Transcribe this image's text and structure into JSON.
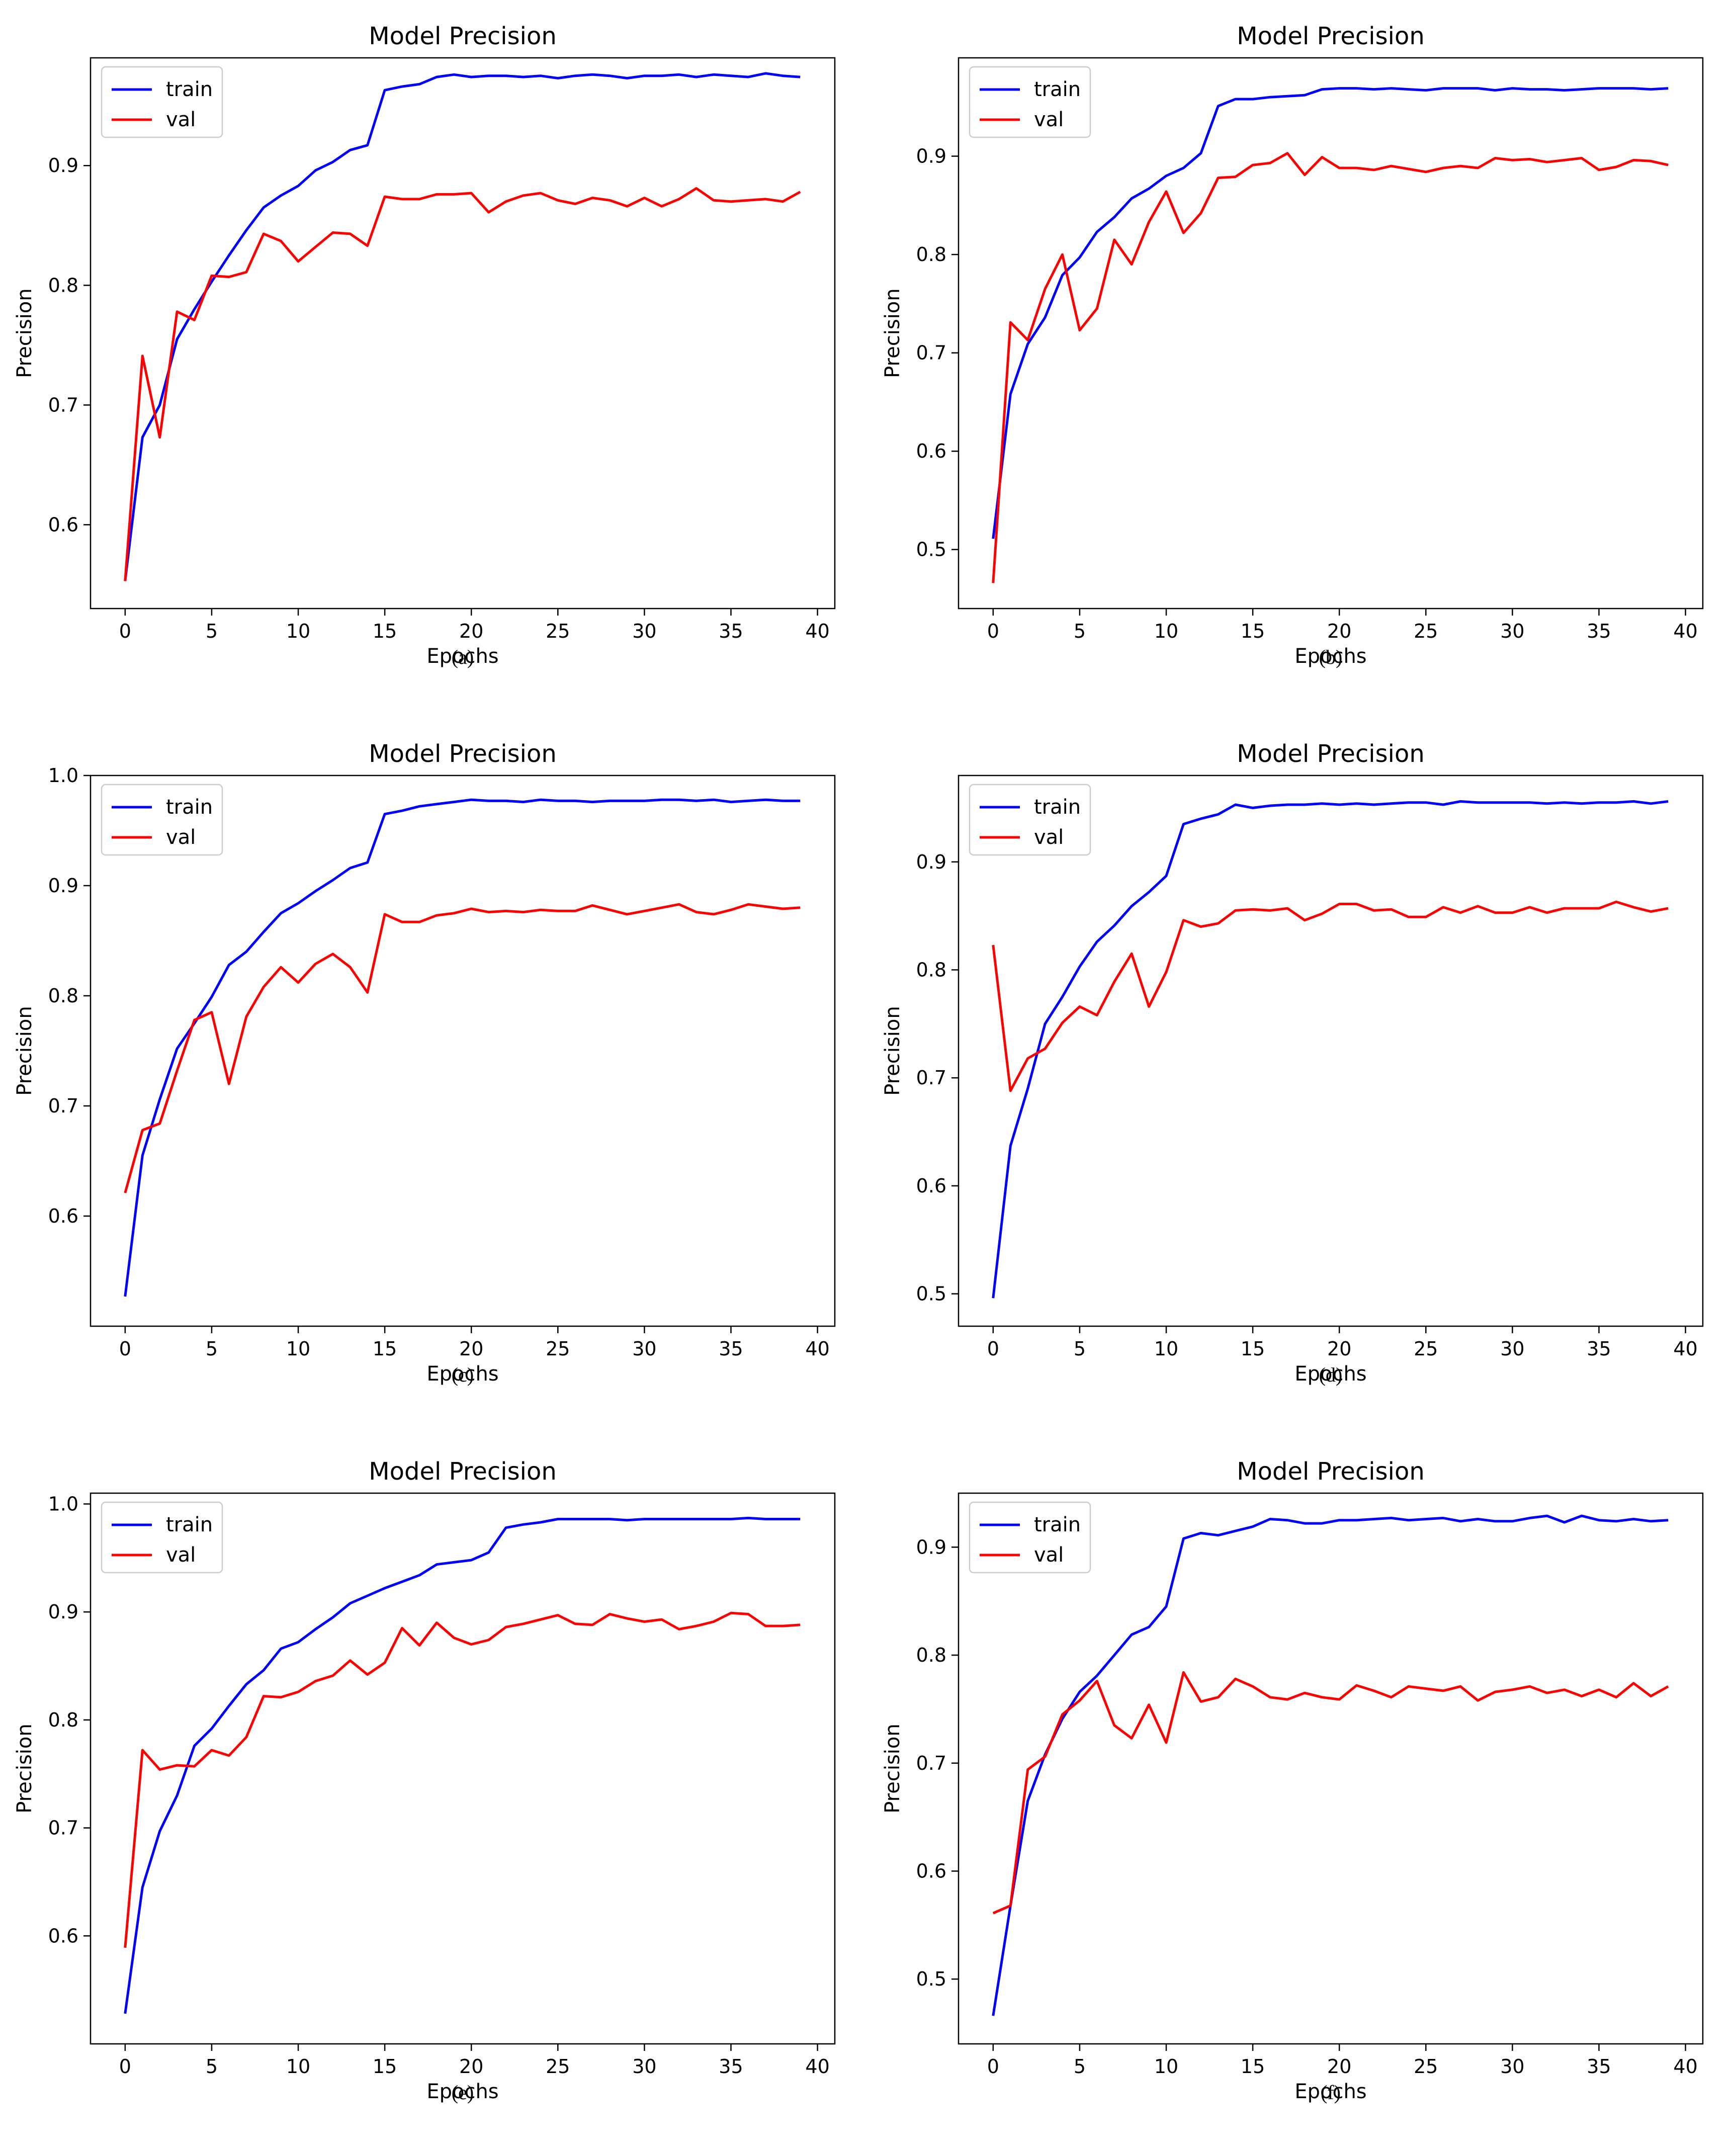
{
  "chart_data": [
    {
      "type": "line",
      "title": "Model Precision",
      "xlabel": "Epochs",
      "ylabel": "Precision",
      "caption": "(a)",
      "xlim": [
        -2,
        41
      ],
      "ylim": [
        0.53,
        0.99
      ],
      "xticks": [
        "0",
        "5",
        "10",
        "15",
        "20",
        "25",
        "30",
        "35",
        "40"
      ],
      "yticks": [
        "0.6",
        "0.7",
        "0.8",
        "0.9"
      ],
      "legend_position": "upper-left",
      "series": [
        {
          "name": "train",
          "color": "#0000ff",
          "values": [
            0.553,
            0.673,
            0.7,
            0.755,
            0.78,
            0.803,
            0.825,
            0.846,
            0.865,
            0.875,
            0.883,
            0.896,
            0.903,
            0.913,
            0.917,
            0.963,
            0.966,
            0.968,
            0.974,
            0.976,
            0.974,
            0.975,
            0.975,
            0.974,
            0.975,
            0.973,
            0.975,
            0.976,
            0.975,
            0.973,
            0.975,
            0.975,
            0.976,
            0.974,
            0.976,
            0.975,
            0.974,
            0.977,
            0.975,
            0.974
          ]
        },
        {
          "name": "val",
          "color": "#ff0000",
          "values": [
            0.553,
            0.741,
            0.673,
            0.778,
            0.771,
            0.808,
            0.807,
            0.811,
            0.843,
            0.837,
            0.82,
            0.832,
            0.844,
            0.843,
            0.833,
            0.874,
            0.872,
            0.872,
            0.876,
            0.876,
            0.877,
            0.861,
            0.87,
            0.875,
            0.877,
            0.871,
            0.868,
            0.873,
            0.871,
            0.866,
            0.873,
            0.866,
            0.872,
            0.881,
            0.871,
            0.87,
            0.871,
            0.872,
            0.87,
            0.878
          ]
        }
      ]
    },
    {
      "type": "line",
      "title": "Model Precision",
      "xlabel": "Epochs",
      "ylabel": "Precision",
      "caption": "(b)",
      "xlim": [
        -2,
        41
      ],
      "ylim": [
        0.44,
        1.0
      ],
      "xticks": [
        "0",
        "5",
        "10",
        "15",
        "20",
        "25",
        "30",
        "35",
        "40"
      ],
      "yticks": [
        "0.5",
        "0.6",
        "0.7",
        "0.8",
        "0.9"
      ],
      "legend_position": "upper-left",
      "series": [
        {
          "name": "train",
          "color": "#0000ff",
          "values": [
            0.511,
            0.658,
            0.709,
            0.736,
            0.779,
            0.797,
            0.823,
            0.838,
            0.857,
            0.867,
            0.88,
            0.888,
            0.903,
            0.951,
            0.958,
            0.958,
            0.96,
            0.961,
            0.962,
            0.968,
            0.969,
            0.969,
            0.968,
            0.969,
            0.968,
            0.967,
            0.969,
            0.969,
            0.969,
            0.967,
            0.969,
            0.968,
            0.968,
            0.967,
            0.968,
            0.969,
            0.969,
            0.969,
            0.968,
            0.969
          ]
        },
        {
          "name": "val",
          "color": "#ff0000",
          "values": [
            0.466,
            0.731,
            0.713,
            0.765,
            0.8,
            0.723,
            0.745,
            0.815,
            0.79,
            0.833,
            0.864,
            0.822,
            0.842,
            0.878,
            0.879,
            0.891,
            0.893,
            0.903,
            0.881,
            0.899,
            0.888,
            0.888,
            0.886,
            0.89,
            0.887,
            0.884,
            0.888,
            0.89,
            0.888,
            0.898,
            0.896,
            0.897,
            0.894,
            0.896,
            0.898,
            0.886,
            0.889,
            0.896,
            0.895,
            0.891
          ]
        }
      ]
    },
    {
      "type": "line",
      "title": "Model Precision",
      "xlabel": "Epochs",
      "ylabel": "Precision",
      "caption": "(c)",
      "xlim": [
        -2,
        41
      ],
      "ylim": [
        0.5,
        1.0
      ],
      "xticks": [
        "0",
        "5",
        "10",
        "15",
        "20",
        "25",
        "30",
        "35",
        "40"
      ],
      "yticks": [
        "0.6",
        "0.7",
        "0.8",
        "0.9",
        "1.0"
      ],
      "legend_position": "upper-left",
      "series": [
        {
          "name": "train",
          "color": "#0000ff",
          "values": [
            0.527,
            0.655,
            0.706,
            0.752,
            0.775,
            0.799,
            0.828,
            0.84,
            0.858,
            0.875,
            0.884,
            0.895,
            0.905,
            0.916,
            0.921,
            0.965,
            0.968,
            0.972,
            0.974,
            0.976,
            0.978,
            0.977,
            0.977,
            0.976,
            0.978,
            0.977,
            0.977,
            0.976,
            0.977,
            0.977,
            0.977,
            0.978,
            0.978,
            0.977,
            0.978,
            0.976,
            0.977,
            0.978,
            0.977,
            0.977
          ]
        },
        {
          "name": "val",
          "color": "#ff0000",
          "values": [
            0.621,
            0.678,
            0.684,
            0.732,
            0.778,
            0.785,
            0.72,
            0.781,
            0.808,
            0.826,
            0.812,
            0.829,
            0.838,
            0.826,
            0.803,
            0.874,
            0.867,
            0.867,
            0.873,
            0.875,
            0.879,
            0.876,
            0.877,
            0.876,
            0.878,
            0.877,
            0.877,
            0.882,
            0.878,
            0.874,
            0.877,
            0.88,
            0.883,
            0.876,
            0.874,
            0.878,
            0.883,
            0.881,
            0.879,
            0.88
          ]
        }
      ]
    },
    {
      "type": "line",
      "title": "Model Precision",
      "xlabel": "Epochs",
      "ylabel": "Precision",
      "caption": "(d)",
      "xlim": [
        -2,
        41
      ],
      "ylim": [
        0.47,
        0.98
      ],
      "xticks": [
        "0",
        "5",
        "10",
        "15",
        "20",
        "25",
        "30",
        "35",
        "40"
      ],
      "yticks": [
        "0.5",
        "0.6",
        "0.7",
        "0.8",
        "0.9"
      ],
      "legend_position": "upper-left",
      "series": [
        {
          "name": "train",
          "color": "#0000ff",
          "values": [
            0.496,
            0.637,
            0.69,
            0.75,
            0.775,
            0.803,
            0.826,
            0.841,
            0.859,
            0.872,
            0.887,
            0.935,
            0.94,
            0.944,
            0.953,
            0.95,
            0.952,
            0.953,
            0.953,
            0.954,
            0.953,
            0.954,
            0.953,
            0.954,
            0.955,
            0.955,
            0.953,
            0.956,
            0.955,
            0.955,
            0.955,
            0.955,
            0.954,
            0.955,
            0.954,
            0.955,
            0.955,
            0.956,
            0.954,
            0.956
          ]
        },
        {
          "name": "val",
          "color": "#ff0000",
          "values": [
            0.823,
            0.688,
            0.718,
            0.727,
            0.751,
            0.766,
            0.758,
            0.789,
            0.815,
            0.766,
            0.798,
            0.846,
            0.84,
            0.843,
            0.855,
            0.856,
            0.855,
            0.857,
            0.846,
            0.852,
            0.861,
            0.861,
            0.855,
            0.856,
            0.849,
            0.849,
            0.858,
            0.853,
            0.859,
            0.853,
            0.853,
            0.858,
            0.853,
            0.857,
            0.857,
            0.857,
            0.863,
            0.858,
            0.854,
            0.857
          ]
        }
      ]
    },
    {
      "type": "line",
      "title": "Model Precision",
      "xlabel": "Epochs",
      "ylabel": "Precision",
      "caption": "(e)",
      "xlim": [
        -2,
        41
      ],
      "ylim": [
        0.5,
        1.01
      ],
      "xticks": [
        "0",
        "5",
        "10",
        "15",
        "20",
        "25",
        "30",
        "35",
        "40"
      ],
      "yticks": [
        "0.6",
        "0.7",
        "0.8",
        "0.9",
        "1.0"
      ],
      "legend_position": "upper-left",
      "series": [
        {
          "name": "train",
          "color": "#0000ff",
          "values": [
            0.528,
            0.645,
            0.697,
            0.73,
            0.776,
            0.792,
            0.813,
            0.833,
            0.846,
            0.866,
            0.872,
            0.884,
            0.895,
            0.908,
            0.915,
            0.922,
            0.928,
            0.934,
            0.944,
            0.946,
            0.948,
            0.955,
            0.978,
            0.981,
            0.983,
            0.986,
            0.986,
            0.986,
            0.986,
            0.985,
            0.986,
            0.986,
            0.986,
            0.986,
            0.986,
            0.986,
            0.987,
            0.986,
            0.986,
            0.986
          ]
        },
        {
          "name": "val",
          "color": "#ff0000",
          "values": [
            0.589,
            0.772,
            0.754,
            0.758,
            0.757,
            0.772,
            0.767,
            0.784,
            0.822,
            0.821,
            0.826,
            0.836,
            0.841,
            0.855,
            0.842,
            0.853,
            0.885,
            0.869,
            0.89,
            0.876,
            0.87,
            0.874,
            0.886,
            0.889,
            0.893,
            0.897,
            0.889,
            0.888,
            0.898,
            0.894,
            0.891,
            0.893,
            0.884,
            0.887,
            0.891,
            0.899,
            0.898,
            0.887,
            0.887,
            0.888
          ]
        }
      ]
    },
    {
      "type": "line",
      "title": "Model Precision",
      "xlabel": "Epochs",
      "ylabel": "Precision",
      "caption": "(f)",
      "xlim": [
        -2,
        41
      ],
      "ylim": [
        0.44,
        0.95
      ],
      "xticks": [
        "0",
        "5",
        "10",
        "15",
        "20",
        "25",
        "30",
        "35",
        "40"
      ],
      "yticks": [
        "0.5",
        "0.6",
        "0.7",
        "0.8",
        "0.9"
      ],
      "legend_position": "upper-left",
      "series": [
        {
          "name": "train",
          "color": "#0000ff",
          "values": [
            0.466,
            0.568,
            0.665,
            0.708,
            0.741,
            0.766,
            0.781,
            0.8,
            0.819,
            0.826,
            0.845,
            0.908,
            0.913,
            0.911,
            0.915,
            0.919,
            0.926,
            0.925,
            0.922,
            0.922,
            0.925,
            0.925,
            0.926,
            0.927,
            0.925,
            0.926,
            0.927,
            0.924,
            0.926,
            0.924,
            0.924,
            0.927,
            0.929,
            0.923,
            0.929,
            0.925,
            0.924,
            0.926,
            0.924,
            0.925
          ]
        },
        {
          "name": "val",
          "color": "#ff0000",
          "values": [
            0.561,
            0.568,
            0.694,
            0.706,
            0.745,
            0.758,
            0.776,
            0.735,
            0.723,
            0.754,
            0.719,
            0.784,
            0.757,
            0.761,
            0.778,
            0.771,
            0.761,
            0.759,
            0.765,
            0.761,
            0.759,
            0.772,
            0.767,
            0.761,
            0.771,
            0.769,
            0.767,
            0.771,
            0.758,
            0.766,
            0.768,
            0.771,
            0.765,
            0.768,
            0.762,
            0.768,
            0.761,
            0.774,
            0.762,
            0.771
          ]
        }
      ]
    }
  ]
}
